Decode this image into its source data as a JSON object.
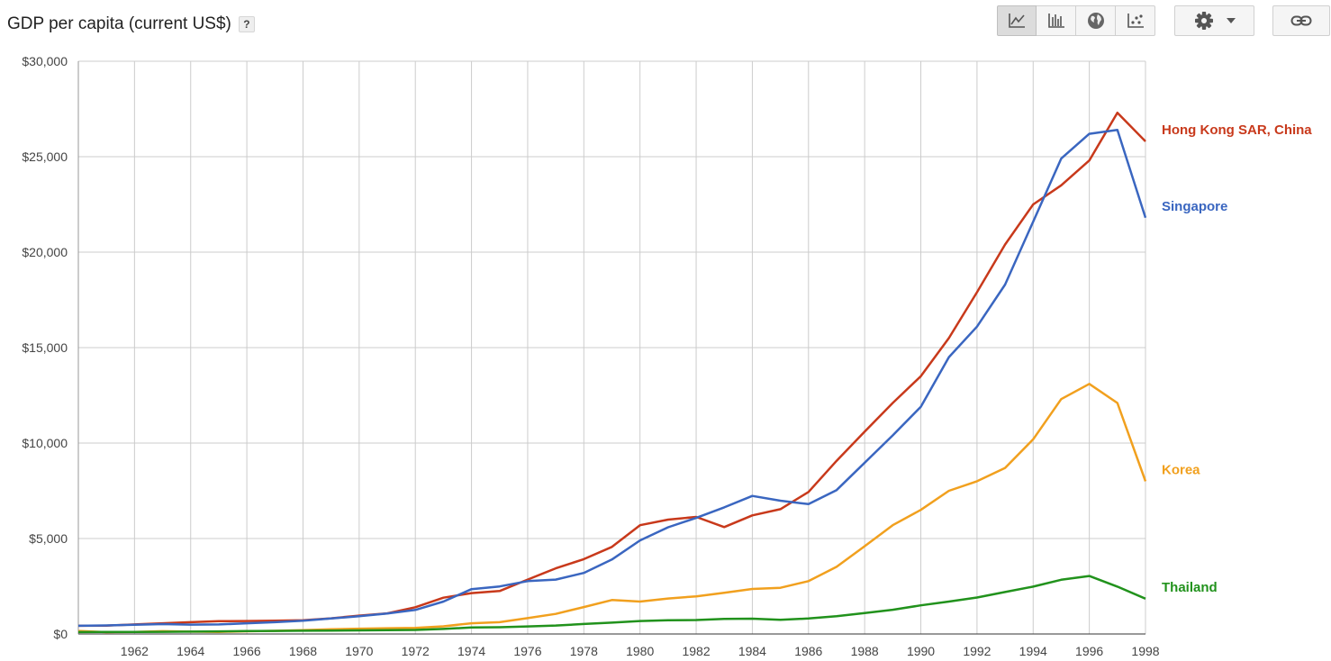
{
  "header": {
    "title": "GDP per capita (current US$)",
    "help_label": "?"
  },
  "toolbar": {
    "buttons": [
      {
        "icon": "line-chart-icon",
        "active": true
      },
      {
        "icon": "bar-chart-icon",
        "active": false
      },
      {
        "icon": "globe-icon",
        "active": false
      },
      {
        "icon": "scatter-icon",
        "active": false
      }
    ],
    "settings_icon": "gear-icon",
    "link_icon": "link-icon"
  },
  "chart_data": {
    "type": "line",
    "title": "GDP per capita (current US$)",
    "ylim": [
      0,
      30000
    ],
    "xlim": [
      1960,
      1998
    ],
    "y_ticks": [
      "$0",
      "$5,000",
      "$10,000",
      "$15,000",
      "$20,000",
      "$25,000",
      "$30,000"
    ],
    "x_ticks": [
      "1962",
      "1964",
      "1966",
      "1968",
      "1970",
      "1972",
      "1974",
      "1976",
      "1978",
      "1980",
      "1982",
      "1984",
      "1986",
      "1988",
      "1990",
      "1992",
      "1994",
      "1996",
      "1998"
    ],
    "grid": true,
    "legend": "right, inline at line ends",
    "x": [
      1960,
      1961,
      1962,
      1963,
      1964,
      1965,
      1966,
      1967,
      1968,
      1969,
      1970,
      1971,
      1972,
      1973,
      1974,
      1975,
      1976,
      1977,
      1978,
      1979,
      1980,
      1981,
      1982,
      1983,
      1984,
      1985,
      1986,
      1987,
      1988,
      1989,
      1990,
      1991,
      1992,
      1993,
      1994,
      1995,
      1996,
      1997,
      1998
    ],
    "series": [
      {
        "name": "Hong Kong SAR, China",
        "color": "#c8391b",
        "values": [
          430,
          440,
          500,
          560,
          620,
          670,
          680,
          700,
          720,
          820,
          960,
          1080,
          1400,
          1900,
          2140,
          2250,
          2850,
          3440,
          3920,
          4560,
          5700,
          5990,
          6130,
          5600,
          6210,
          6540,
          7440,
          9070,
          10600,
          12100,
          13500,
          15500,
          17900,
          20400,
          22500,
          23500,
          24800,
          27300,
          25800
        ]
      },
      {
        "name": "Singapore",
        "color": "#3a66c0",
        "values": [
          430,
          450,
          480,
          520,
          490,
          500,
          560,
          620,
          700,
          810,
          930,
          1070,
          1260,
          1700,
          2350,
          2490,
          2770,
          2850,
          3200,
          3900,
          4900,
          5590,
          6080,
          6630,
          7230,
          6980,
          6800,
          7540,
          8970,
          10400,
          11900,
          14500,
          16100,
          18300,
          21600,
          24900,
          26200,
          26400,
          21800
        ]
      },
      {
        "name": "Korea",
        "color": "#f1a01e",
        "values": [
          160,
          95,
          110,
          145,
          125,
          110,
          140,
          165,
          200,
          245,
          280,
          300,
          320,
          400,
          560,
          620,
          830,
          1050,
          1410,
          1780,
          1700,
          1860,
          1970,
          2160,
          2360,
          2420,
          2770,
          3520,
          4600,
          5700,
          6500,
          7500,
          8000,
          8700,
          10200,
          12300,
          13100,
          12100,
          8000
        ]
      },
      {
        "name": "Thailand",
        "color": "#21921c",
        "values": [
          100,
          105,
          110,
          115,
          125,
          135,
          150,
          160,
          170,
          180,
          190,
          200,
          210,
          265,
          340,
          355,
          395,
          445,
          525,
          595,
          680,
          715,
          730,
          790,
          800,
          740,
          810,
          930,
          1100,
          1270,
          1500,
          1700,
          1910,
          2200,
          2480,
          2840,
          3040,
          2480,
          1850
        ]
      }
    ]
  }
}
